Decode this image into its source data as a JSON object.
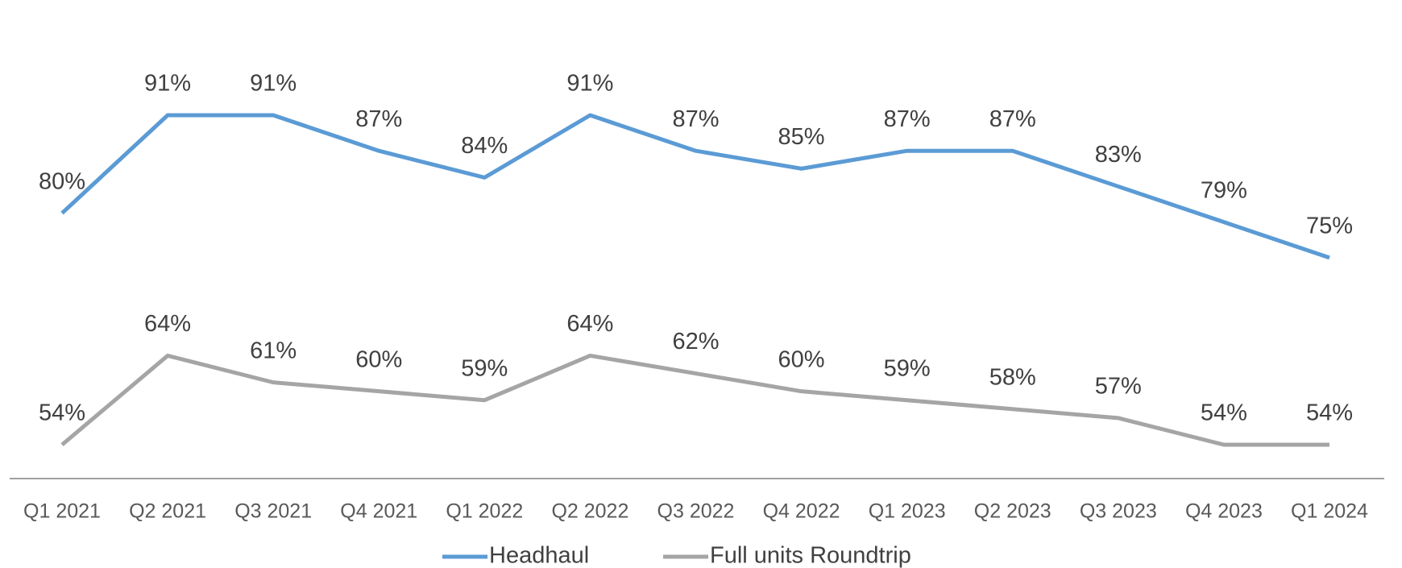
{
  "chart_data": {
    "type": "line",
    "categories": [
      "Q1 2021",
      "Q2 2021",
      "Q3 2021",
      "Q4 2021",
      "Q1 2022",
      "Q2 2022",
      "Q3 2022",
      "Q4 2022",
      "Q1 2023",
      "Q2 2023",
      "Q3 2023",
      "Q4 2023",
      "Q1 2024"
    ],
    "series": [
      {
        "name": "Headhaul",
        "color": "#5b9bd5",
        "values": [
          80,
          91,
          91,
          87,
          84,
          91,
          87,
          85,
          87,
          87,
          83,
          79,
          75
        ],
        "value_labels": [
          "80%",
          "91%",
          "91%",
          "87%",
          "84%",
          "91%",
          "87%",
          "85%",
          "87%",
          "87%",
          "83%",
          "79%",
          "75%"
        ]
      },
      {
        "name": "Full units Roundtrip",
        "color": "#a5a5a5",
        "values": [
          54,
          64,
          61,
          60,
          59,
          64,
          62,
          60,
          59,
          58,
          57,
          54,
          54
        ],
        "value_labels": [
          "54%",
          "64%",
          "61%",
          "60%",
          "59%",
          "64%",
          "62%",
          "60%",
          "59%",
          "58%",
          "57%",
          "54%",
          "54%"
        ]
      }
    ],
    "legend": "bottom"
  }
}
